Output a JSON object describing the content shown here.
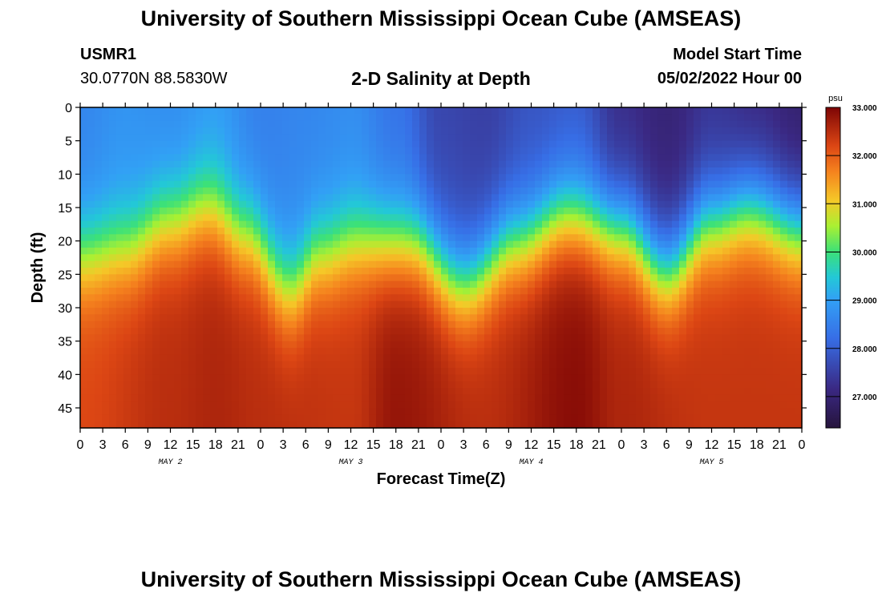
{
  "page": {
    "title_top": "University of Southern Mississippi Ocean Cube (AMSEAS)",
    "title_bottom": "University of Southern Mississippi Ocean Cube (AMSEAS)",
    "station_name": "USMR1",
    "station_coords": "30.0770N  88.5830W",
    "model_start_label": "Model Start Time",
    "model_start_value": "05/02/2022 Hour 00"
  },
  "chart_data": {
    "type": "heatmap",
    "title": "2-D Salinity at Depth",
    "xlabel": "Forecast Time(Z)",
    "ylabel": "Depth (ft)",
    "x_range_hours": [
      0,
      96
    ],
    "ylim": [
      0,
      48
    ],
    "y_inverted": true,
    "yticks": [
      0,
      5,
      10,
      15,
      20,
      25,
      30,
      35,
      40,
      45
    ],
    "xtick_labels": [
      "0",
      "3",
      "6",
      "9",
      "12",
      "15",
      "18",
      "21",
      "0",
      "3",
      "6",
      "9",
      "12",
      "15",
      "18",
      "21",
      "0",
      "3",
      "6",
      "9",
      "12",
      "15",
      "18",
      "21",
      "0",
      "3",
      "6",
      "9",
      "12",
      "15",
      "18",
      "21",
      "0"
    ],
    "day_labels": [
      "MAY 2",
      "MAY 3",
      "MAY 4",
      "MAY 5"
    ],
    "colorbar": {
      "unit": "psu",
      "range": [
        26.35,
        33.0
      ],
      "ticks": [
        33.0,
        32.0,
        31.0,
        30.0,
        29.0,
        28.0,
        27.0
      ],
      "tick_labels": [
        "33.000",
        "32.000",
        "31.000",
        "30.000",
        "29.000",
        "28.000",
        "27.000"
      ]
    },
    "surface_salinity": [
      {
        "hour": 0,
        "psu": 28.6
      },
      {
        "hour": 6,
        "psu": 28.8
      },
      {
        "hour": 12,
        "psu": 28.7
      },
      {
        "hour": 18,
        "psu": 28.9
      },
      {
        "hour": 24,
        "psu": 28.5
      },
      {
        "hour": 30,
        "psu": 28.6
      },
      {
        "hour": 36,
        "psu": 28.7
      },
      {
        "hour": 42,
        "psu": 28.3
      },
      {
        "hour": 48,
        "psu": 27.6
      },
      {
        "hour": 54,
        "psu": 27.5
      },
      {
        "hour": 60,
        "psu": 27.8
      },
      {
        "hour": 66,
        "psu": 27.9
      },
      {
        "hour": 72,
        "psu": 27.2
      },
      {
        "hour": 78,
        "psu": 27.0
      },
      {
        "hour": 84,
        "psu": 27.3
      },
      {
        "hour": 90,
        "psu": 27.1
      },
      {
        "hour": 96,
        "psu": 26.9
      }
    ],
    "bottom_salinity": [
      {
        "hour": 0,
        "psu": 32.2
      },
      {
        "hour": 12,
        "psu": 32.5
      },
      {
        "hour": 18,
        "psu": 32.6
      },
      {
        "hour": 24,
        "psu": 32.5
      },
      {
        "hour": 36,
        "psu": 32.4
      },
      {
        "hour": 42,
        "psu": 32.8
      },
      {
        "hour": 54,
        "psu": 32.5
      },
      {
        "hour": 66,
        "psu": 32.9
      },
      {
        "hour": 72,
        "psu": 32.6
      },
      {
        "hour": 84,
        "psu": 32.4
      },
      {
        "hour": 96,
        "psu": 32.4
      }
    ],
    "halocline_depth_ft": [
      {
        "hour": 0,
        "depth": 22
      },
      {
        "hour": 6,
        "depth": 21
      },
      {
        "hour": 12,
        "depth": 17
      },
      {
        "hour": 17,
        "depth": 15
      },
      {
        "hour": 22,
        "depth": 19
      },
      {
        "hour": 28,
        "depth": 27
      },
      {
        "hour": 32,
        "depth": 22
      },
      {
        "hour": 37,
        "depth": 20
      },
      {
        "hour": 44,
        "depth": 20
      },
      {
        "hour": 51,
        "depth": 26
      },
      {
        "hour": 58,
        "depth": 20
      },
      {
        "hour": 65,
        "depth": 16
      },
      {
        "hour": 72,
        "depth": 18
      },
      {
        "hour": 78,
        "depth": 24
      },
      {
        "hour": 84,
        "depth": 17
      },
      {
        "hour": 89,
        "depth": 15
      },
      {
        "hour": 96,
        "depth": 18
      }
    ]
  }
}
